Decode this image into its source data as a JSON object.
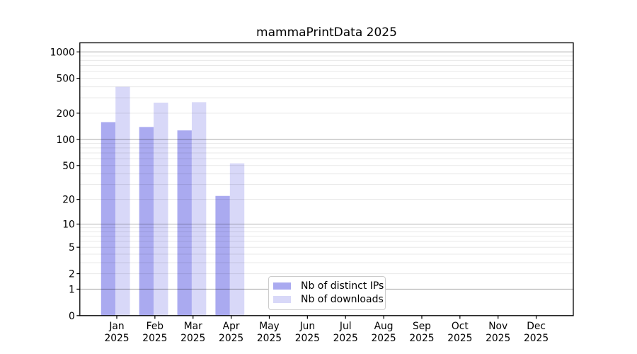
{
  "chart_data": {
    "type": "bar",
    "title": "mammaPrintData 2025",
    "year_label": "2025",
    "categories": [
      "Jan",
      "Feb",
      "Mar",
      "Apr",
      "May",
      "Jun",
      "Jul",
      "Aug",
      "Sep",
      "Oct",
      "Nov",
      "Dec"
    ],
    "series": [
      {
        "name": "Nb of distinct IPs",
        "color": "#aaaaf0",
        "values": [
          158,
          139,
          127,
          22,
          0,
          0,
          0,
          0,
          0,
          0,
          0,
          0
        ]
      },
      {
        "name": "Nb of downloads",
        "color": "#d8d8f8",
        "values": [
          400,
          264,
          267,
          53,
          0,
          0,
          0,
          0,
          0,
          0,
          0,
          0
        ]
      }
    ],
    "xlabel": "",
    "ylabel": "",
    "yscale": "log10(1+x)",
    "y_ticks": [
      0,
      1,
      2,
      5,
      10,
      20,
      50,
      100,
      200,
      500,
      1000
    ],
    "ylim": [
      0,
      1265
    ],
    "grid": true,
    "grid_major_at": [
      1,
      10,
      100,
      1000
    ],
    "legend_position": "inside lower-center-left",
    "colors": {
      "axis": "#000000",
      "grid_major": "rgba(0,0,0,0.30)",
      "grid_minor": "rgba(0,0,0,0.09)",
      "legend_border": "#cccccc",
      "background": "#ffffff"
    }
  }
}
